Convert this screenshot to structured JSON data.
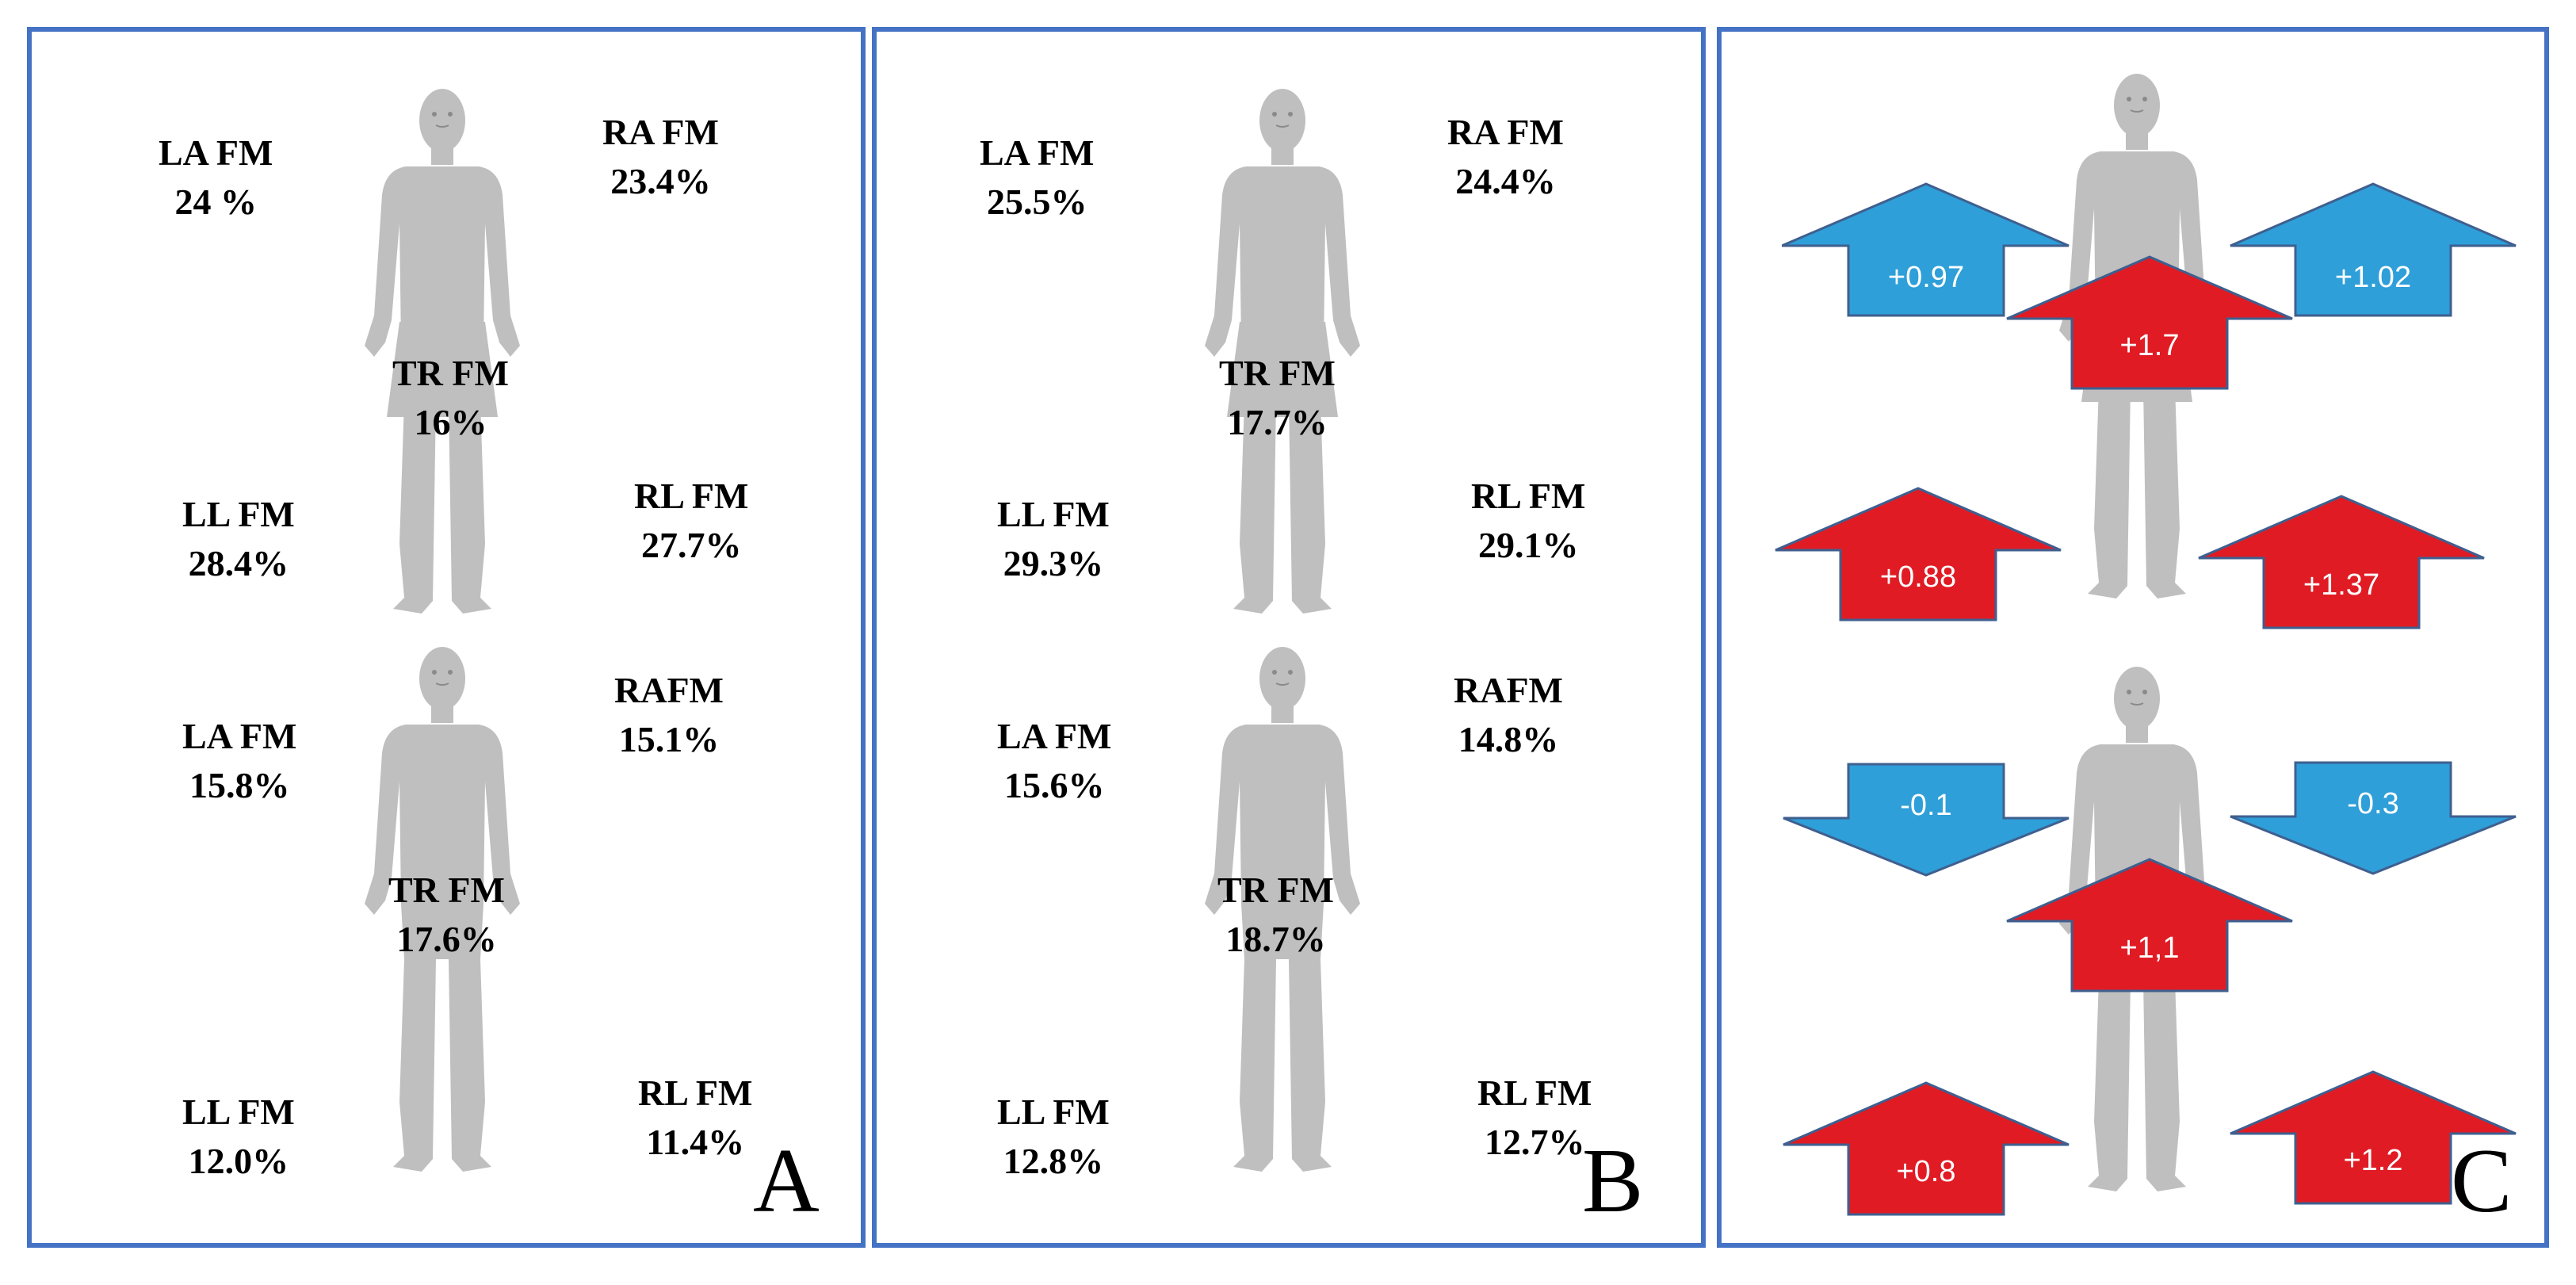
{
  "panels": {
    "a": {
      "letter": "A",
      "top": {
        "la": [
          "LA FM",
          "24  %"
        ],
        "ra": [
          "RA FM",
          "23.4%"
        ],
        "tr": [
          "TR FM",
          "16%"
        ],
        "ll": [
          "LL FM",
          "28.4%"
        ],
        "rl": [
          "RL FM",
          "27.7%"
        ]
      },
      "bottom": {
        "la": [
          "LA FM",
          "15.8%"
        ],
        "ra": [
          "RAFM",
          "15.1%"
        ],
        "tr": [
          "TR FM",
          "17.6%"
        ],
        "ll": [
          "LL FM",
          "12.0%"
        ],
        "rl": [
          "RL FM",
          "11.4%"
        ]
      }
    },
    "b": {
      "letter": "B",
      "top": {
        "la": [
          "LA FM",
          "25.5%"
        ],
        "ra": [
          "RA FM",
          "24.4%"
        ],
        "tr": [
          "TR FM",
          "17.7%"
        ],
        "ll": [
          "LL FM",
          "29.3%"
        ],
        "rl": [
          "RL FM",
          "29.1%"
        ]
      },
      "bottom": {
        "la": [
          "LA FM",
          "15.6%"
        ],
        "ra": [
          "RAFM",
          "14.8%"
        ],
        "tr": [
          "TR FM",
          "18.7%"
        ],
        "ll": [
          "LL FM",
          "12.8%"
        ],
        "rl": [
          "RL FM",
          "12.7%"
        ]
      }
    },
    "c": {
      "letter": "C",
      "top": {
        "left_arm": "+0.97",
        "right_arm": "+1.02",
        "trunk": "+1.7",
        "left_leg": "+0.88",
        "right_leg": "+1.37"
      },
      "bottom": {
        "left_arm": "-0.1",
        "right_arm": "-0.3",
        "trunk": "+1,1",
        "left_leg": "+0.8",
        "right_leg": "+1.2"
      }
    }
  },
  "colors": {
    "border": "#4472C4",
    "silhouette": "#BFBFBF",
    "arm_arrow": "#2E9FD8",
    "up_arrow": "#E01B24",
    "arrow_outline": "#3F5F8F"
  }
}
